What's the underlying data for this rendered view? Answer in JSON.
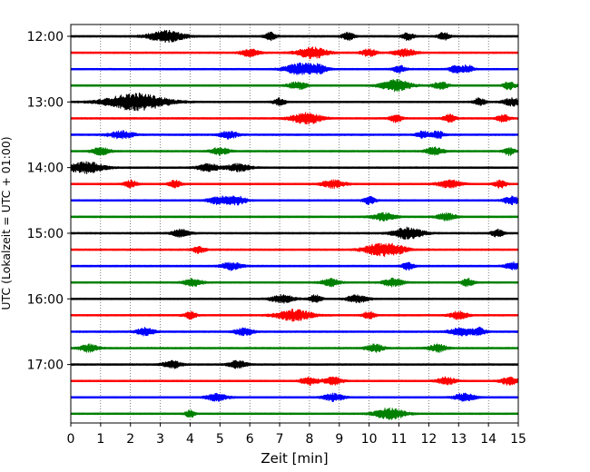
{
  "chart_data": {
    "type": "line",
    "title": "",
    "xlabel": "Zeit  [min]",
    "ylabel": "UTC (Lokalzeit = UTC + 01:00)",
    "xlim": [
      0,
      15
    ],
    "x_ticks": [
      "0",
      "1",
      "2",
      "3",
      "4",
      "5",
      "6",
      "7",
      "8",
      "9",
      "10",
      "11",
      "12",
      "13",
      "14",
      "15"
    ],
    "y_ticks": [
      "12:00",
      "13:00",
      "14:00",
      "15:00",
      "16:00",
      "17:00"
    ],
    "grid": "vertical dotted lines at each minute",
    "trace_interval_minutes": 15,
    "color_cycle": [
      "#000000",
      "#ff0000",
      "#0000ff",
      "#008000"
    ],
    "traces": [
      {
        "start": "12:00",
        "color": "#000000",
        "bursts": [
          [
            3.2,
            0.6
          ],
          [
            6.7,
            0.2
          ],
          [
            9.3,
            0.2
          ],
          [
            11.3,
            0.2
          ],
          [
            12.5,
            0.2
          ]
        ]
      },
      {
        "start": "12:15",
        "color": "#ff0000",
        "bursts": [
          [
            6.0,
            0.3
          ],
          [
            8.1,
            0.5
          ],
          [
            10.0,
            0.25
          ],
          [
            11.2,
            0.35
          ]
        ]
      },
      {
        "start": "12:30",
        "color": "#0000ff",
        "bursts": [
          [
            7.7,
            0.5
          ],
          [
            8.3,
            0.3
          ],
          [
            11.0,
            0.2
          ],
          [
            12.9,
            0.2
          ],
          [
            13.3,
            0.2
          ]
        ]
      },
      {
        "start": "12:45",
        "color": "#008000",
        "bursts": [
          [
            7.6,
            0.3
          ],
          [
            10.9,
            0.5
          ],
          [
            12.4,
            0.25
          ],
          [
            14.7,
            0.2
          ]
        ]
      },
      {
        "start": "13:00",
        "color": "#000000",
        "bursts": [
          [
            2.2,
            1.0
          ],
          [
            7.0,
            0.2
          ],
          [
            13.7,
            0.2
          ],
          [
            14.8,
            0.3
          ]
        ]
      },
      {
        "start": "13:15",
        "color": "#ff0000",
        "bursts": [
          [
            7.9,
            0.5
          ],
          [
            10.9,
            0.2
          ],
          [
            12.7,
            0.2
          ],
          [
            14.5,
            0.2
          ]
        ]
      },
      {
        "start": "13:30",
        "color": "#0000ff",
        "bursts": [
          [
            1.7,
            0.4
          ],
          [
            5.3,
            0.3
          ],
          [
            11.8,
            0.2
          ],
          [
            12.3,
            0.2
          ]
        ]
      },
      {
        "start": "13:45",
        "color": "#008000",
        "bursts": [
          [
            1.0,
            0.3
          ],
          [
            5.0,
            0.3
          ],
          [
            12.2,
            0.3
          ],
          [
            14.7,
            0.2
          ]
        ]
      },
      {
        "start": "14:00",
        "color": "#000000",
        "bursts": [
          [
            0.5,
            0.6
          ],
          [
            4.6,
            0.35
          ],
          [
            5.6,
            0.4
          ]
        ]
      },
      {
        "start": "14:15",
        "color": "#ff0000",
        "bursts": [
          [
            2.0,
            0.2
          ],
          [
            3.5,
            0.2
          ],
          [
            8.8,
            0.4
          ],
          [
            12.7,
            0.4
          ],
          [
            14.4,
            0.2
          ]
        ]
      },
      {
        "start": "14:30",
        "color": "#0000ff",
        "bursts": [
          [
            5.0,
            0.4
          ],
          [
            5.6,
            0.3
          ],
          [
            10.0,
            0.2
          ],
          [
            14.8,
            0.3
          ]
        ]
      },
      {
        "start": "14:45",
        "color": "#008000",
        "bursts": [
          [
            10.5,
            0.4
          ],
          [
            12.6,
            0.3
          ]
        ]
      },
      {
        "start": "15:00",
        "color": "#000000",
        "bursts": [
          [
            3.7,
            0.3
          ],
          [
            11.3,
            0.5
          ],
          [
            14.3,
            0.2
          ]
        ]
      },
      {
        "start": "15:15",
        "color": "#ff0000",
        "bursts": [
          [
            4.3,
            0.2
          ],
          [
            10.3,
            0.5
          ],
          [
            10.9,
            0.4
          ]
        ]
      },
      {
        "start": "15:30",
        "color": "#0000ff",
        "bursts": [
          [
            5.4,
            0.35
          ],
          [
            11.3,
            0.2
          ],
          [
            14.8,
            0.25
          ]
        ]
      },
      {
        "start": "15:45",
        "color": "#008000",
        "bursts": [
          [
            4.1,
            0.3
          ],
          [
            8.7,
            0.3
          ],
          [
            10.8,
            0.35
          ],
          [
            13.3,
            0.2
          ]
        ]
      },
      {
        "start": "16:00",
        "color": "#000000",
        "bursts": [
          [
            7.1,
            0.4
          ],
          [
            8.2,
            0.2
          ],
          [
            9.6,
            0.35
          ]
        ]
      },
      {
        "start": "16:15",
        "color": "#ff0000",
        "bursts": [
          [
            4.0,
            0.2
          ],
          [
            7.5,
            0.6
          ],
          [
            10.0,
            0.2
          ],
          [
            13.0,
            0.3
          ]
        ]
      },
      {
        "start": "16:30",
        "color": "#0000ff",
        "bursts": [
          [
            2.5,
            0.3
          ],
          [
            5.8,
            0.3
          ],
          [
            13.1,
            0.4
          ],
          [
            13.7,
            0.2
          ]
        ]
      },
      {
        "start": "16:45",
        "color": "#008000",
        "bursts": [
          [
            0.6,
            0.3
          ],
          [
            10.2,
            0.3
          ],
          [
            12.3,
            0.3
          ]
        ]
      },
      {
        "start": "17:00",
        "color": "#000000",
        "bursts": [
          [
            3.4,
            0.3
          ],
          [
            5.6,
            0.3
          ]
        ]
      },
      {
        "start": "17:15",
        "color": "#ff0000",
        "bursts": [
          [
            8.0,
            0.3
          ],
          [
            8.8,
            0.3
          ],
          [
            12.6,
            0.3
          ],
          [
            14.7,
            0.3
          ]
        ]
      },
      {
        "start": "17:30",
        "color": "#0000ff",
        "bursts": [
          [
            4.9,
            0.35
          ],
          [
            8.8,
            0.35
          ],
          [
            13.2,
            0.35
          ]
        ]
      },
      {
        "start": "17:45",
        "color": "#008000",
        "bursts": [
          [
            4.0,
            0.15
          ],
          [
            10.7,
            0.5
          ]
        ]
      }
    ]
  }
}
